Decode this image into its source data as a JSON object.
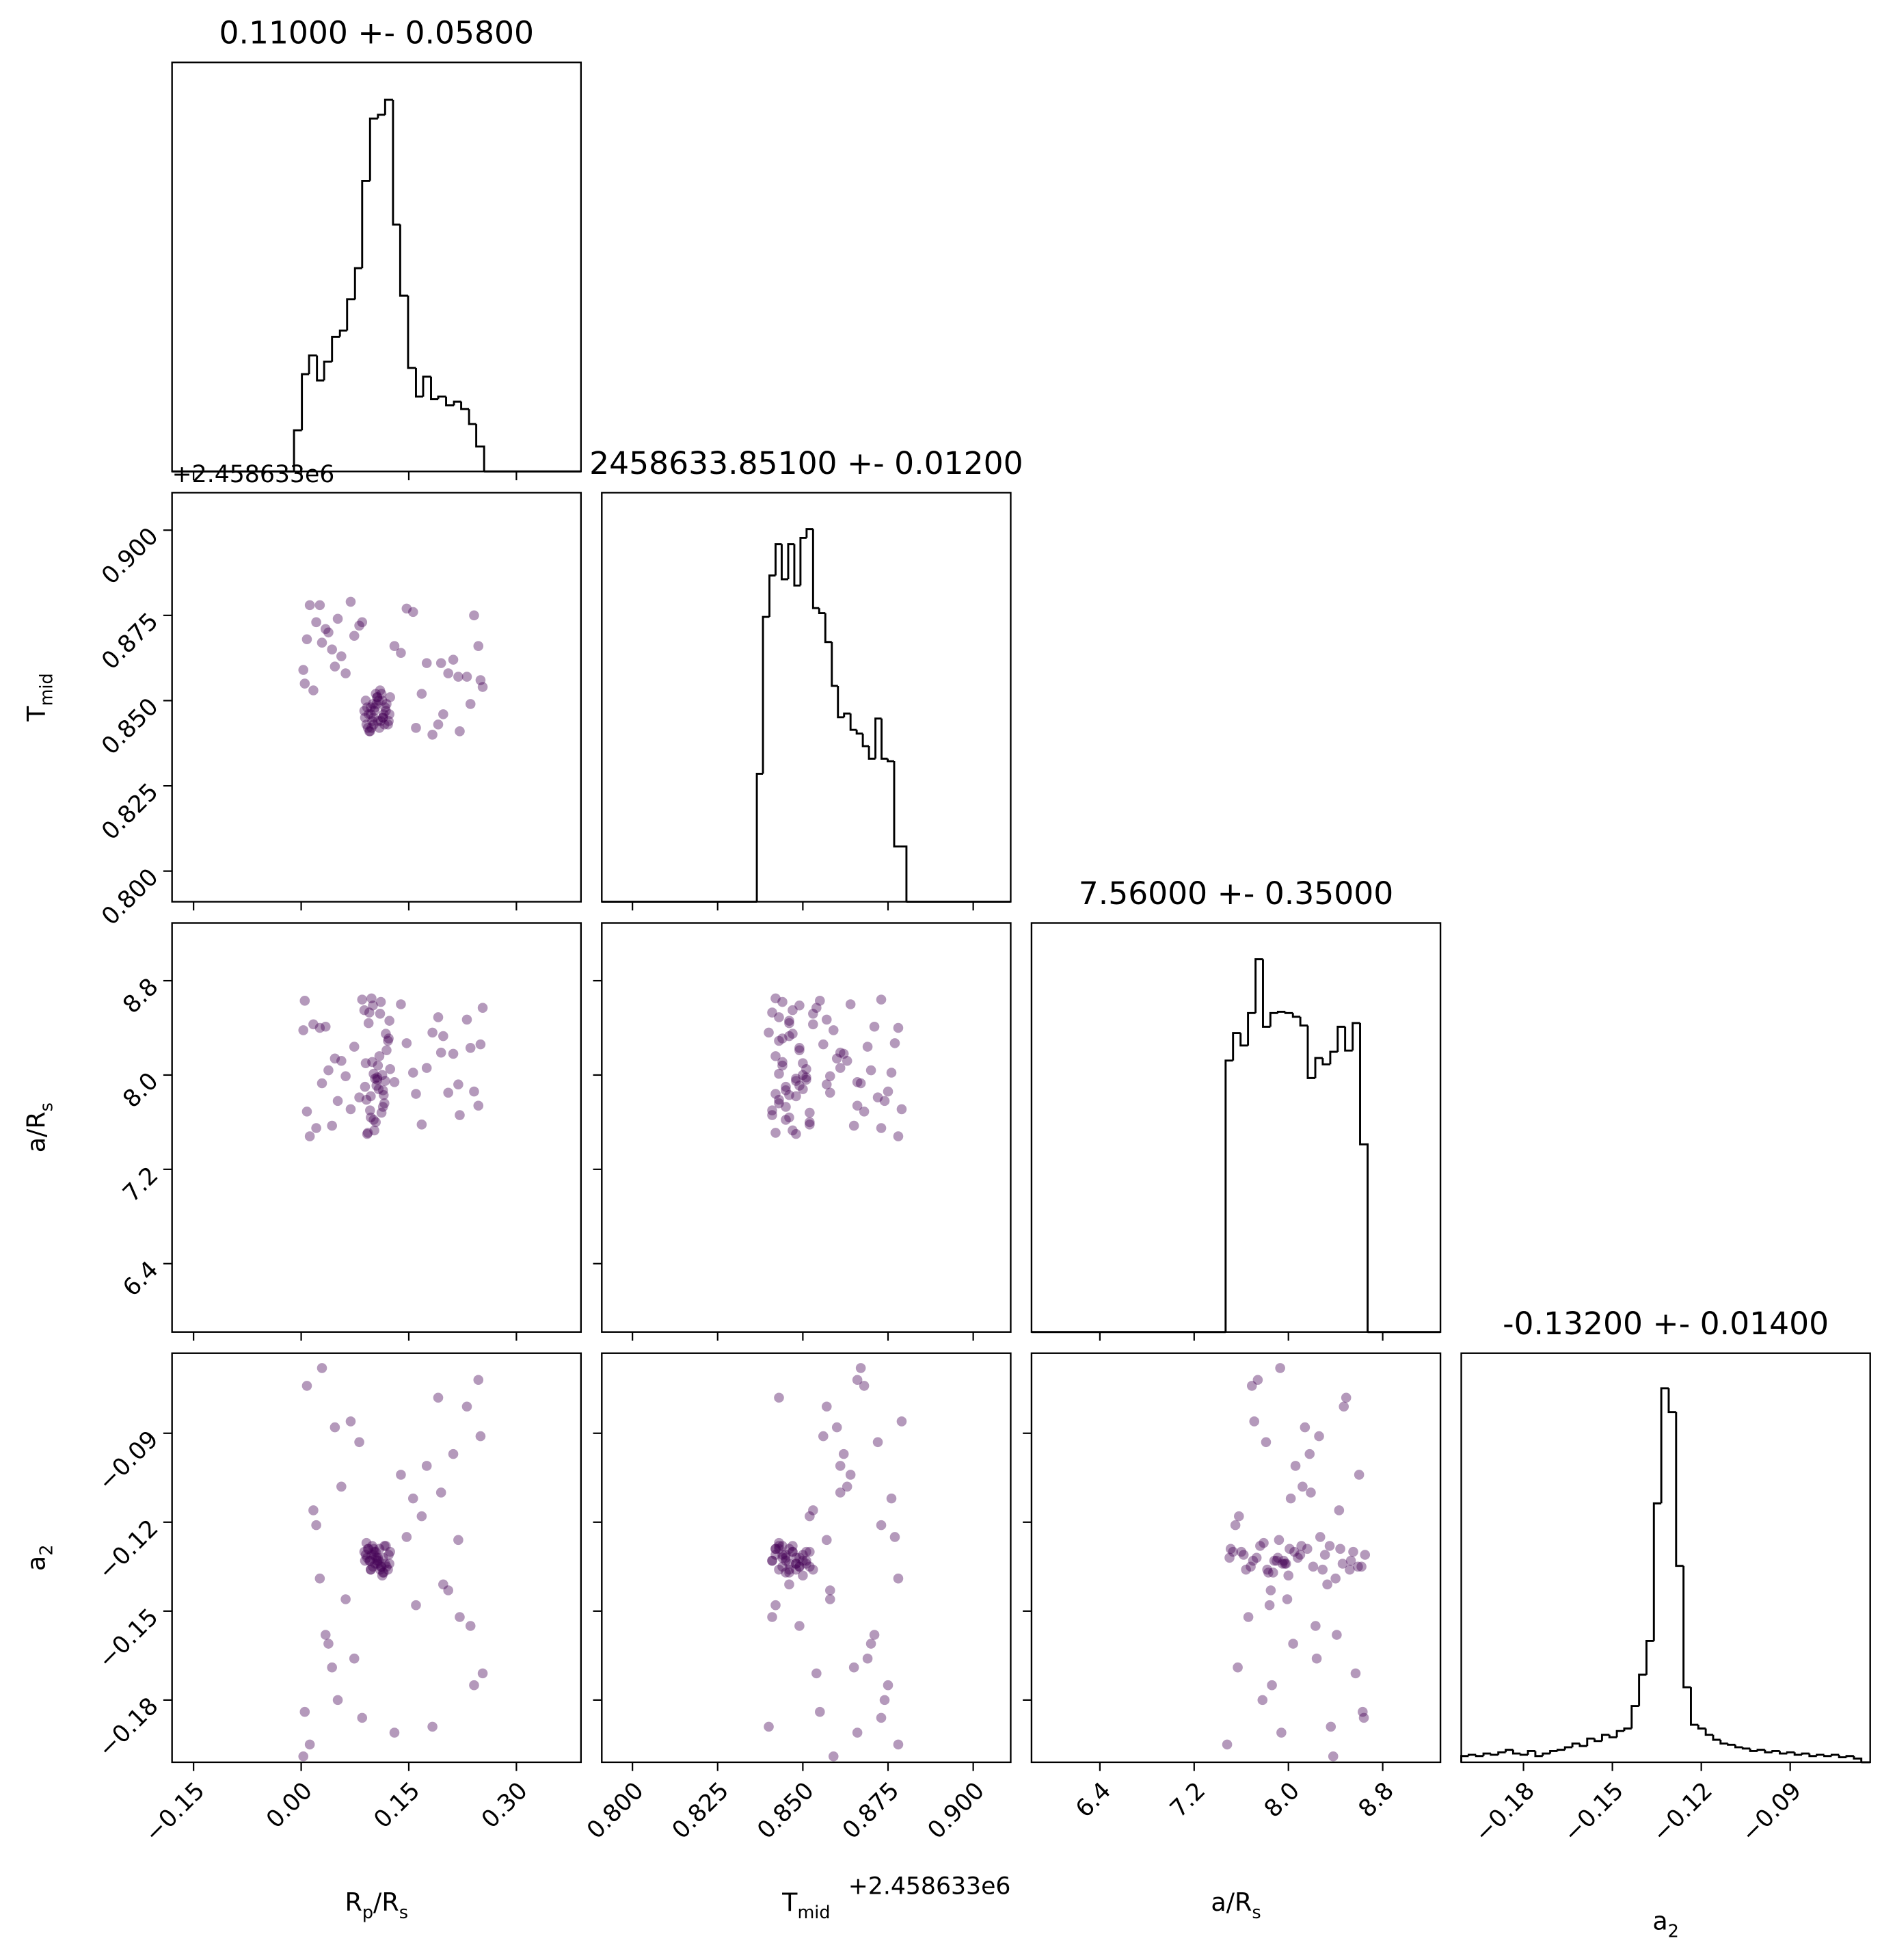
{
  "chart_data": {
    "type": "corner",
    "color": "#440154",
    "hist_color": "#000000",
    "parameters": [
      {
        "title": "0.11000 +- 0.05800",
        "label": [
          "R",
          "p",
          "/R",
          "s"
        ],
        "lim": [
          -0.18,
          0.39
        ],
        "ticks": [
          {
            "value": -0.15,
            "label": "−0.15"
          },
          {
            "value": 0,
            "label": "0.00"
          },
          {
            "value": 0.15,
            "label": "0.15"
          },
          {
            "value": 0.3,
            "label": "0.30"
          }
        ],
        "bins": [
          -0.01,
          0.001,
          0.011,
          0.022,
          0.032,
          0.043,
          0.054,
          0.064,
          0.075,
          0.085,
          0.096,
          0.107,
          0.117,
          0.128,
          0.138,
          0.149,
          0.16,
          0.17,
          0.181,
          0.191,
          0.202,
          0.213,
          0.223,
          0.234,
          0.244,
          0.255
        ],
        "counts": [
          33,
          78,
          93,
          73,
          88,
          108,
          113,
          138,
          163,
          233,
          283,
          286,
          298,
          198,
          141,
          83,
          60,
          76,
          58,
          60,
          53,
          56,
          50,
          38,
          20
        ],
        "hist_ylim": [
          0,
          328
        ],
        "samples": [
          0.101,
          0.034,
          0.117,
          0.212,
          0.093,
          0.005,
          0.108,
          0.156,
          0.121,
          0.247,
          0.088,
          0.062,
          0.112,
          0.183,
          0.099,
          0.021,
          0.105,
          0.231,
          0.115,
          0.074,
          0.096,
          0.139,
          0.124,
          0.012,
          0.103,
          0.198,
          0.091,
          0.047,
          0.11,
          0.241,
          0.107,
          0.168,
          0.094,
          0.029,
          0.119,
          0.221,
          0.098,
          0.081,
          0.113,
          0.003,
          0.102,
          0.147,
          0.089,
          0.253,
          0.116,
          0.056,
          0.106,
          0.191,
          0.097,
          0.038,
          0.122,
          0.205,
          0.1,
          0.069,
          0.109,
          0.13,
          0.092,
          0.017,
          0.114,
          0.236,
          0.104,
          0.175,
          0.095,
          0.051,
          0.118,
          0.219,
          0.111,
          0.008,
          0.09,
          0.16,
          0.123,
          0.043,
          0.101,
          0.25,
          0.097,
          0.085,
          0.114,
          0.195,
          0.106,
          0.026
        ]
      },
      {
        "title": "2458633.85100 +- 0.01200",
        "label": [
          "T",
          "mid"
        ],
        "offset_text": "+2.458633e6",
        "lim": [
          0.791,
          0.911
        ],
        "ticks": [
          {
            "value": 0.8,
            "label": "0.800"
          },
          {
            "value": 0.825,
            "label": "0.825"
          },
          {
            "value": 0.85,
            "label": "0.850"
          },
          {
            "value": 0.875,
            "label": "0.875"
          },
          {
            "value": 0.9,
            "label": "0.900"
          }
        ],
        "bins": [
          0.8365,
          0.8383,
          0.8402,
          0.842,
          0.8438,
          0.8457,
          0.8475,
          0.8493,
          0.8511,
          0.853,
          0.8548,
          0.8566,
          0.8585,
          0.8603,
          0.8621,
          0.864,
          0.8658,
          0.8676,
          0.8694,
          0.8713,
          0.8731,
          0.8749,
          0.8768,
          0.8786,
          0.8804
        ],
        "counts": [
          102,
          227,
          260,
          285,
          257,
          285,
          252,
          290,
          297,
          234,
          230,
          207,
          172,
          147,
          150,
          137,
          134,
          124,
          114,
          146,
          114,
          112,
          44,
          44
        ],
        "hist_ylim": [
          0,
          326
        ],
        "samples": [
          0.845,
          0.871,
          0.848,
          0.862,
          0.842,
          0.855,
          0.85,
          0.876,
          0.843,
          0.866,
          0.847,
          0.858,
          0.852,
          0.84,
          0.844,
          0.873,
          0.849,
          0.857,
          0.846,
          0.869,
          0.841,
          0.864,
          0.851,
          0.878,
          0.848,
          0.846,
          0.843,
          0.86,
          0.853,
          0.875,
          0.844,
          0.852,
          0.846,
          0.867,
          0.849,
          0.841,
          0.842,
          0.872,
          0.85,
          0.859,
          0.847,
          0.877,
          0.845,
          0.854,
          0.843,
          0.863,
          0.851,
          0.843,
          0.846,
          0.87,
          0.844,
          0.858,
          0.849,
          0.879,
          0.842,
          0.866,
          0.848,
          0.853,
          0.845,
          0.849,
          0.852,
          0.861,
          0.841,
          0.874,
          0.847,
          0.857,
          0.844,
          0.868,
          0.85,
          0.842,
          0.846,
          0.865,
          0.843,
          0.856,
          0.848,
          0.873,
          0.845,
          0.861,
          0.851,
          0.878
        ]
      },
      {
        "title": "7.56000 +- 0.35000",
        "label": [
          "a/R",
          "s"
        ],
        "lim": [
          5.82,
          9.29
        ],
        "ticks": [
          6.4,
          7.2,
          {
            "value": 8,
            "label": "8.0"
          },
          8.8
        ],
        "bins": [
          7.467,
          7.53,
          7.594,
          7.657,
          7.721,
          7.784,
          7.847,
          7.911,
          7.974,
          8.038,
          8.101,
          8.164,
          8.228,
          8.291,
          8.355,
          8.418,
          8.481,
          8.545,
          8.608,
          8.672
        ],
        "counts": [
          217,
          239,
          229,
          255,
          298,
          244,
          255,
          256,
          255,
          252,
          245,
          203,
          219,
          214,
          224,
          244,
          225,
          247,
          150
        ],
        "hist_ylim": [
          0,
          327
        ],
        "samples": [
          7.62,
          8.41,
          7.95,
          8.18,
          7.51,
          8.63,
          7.88,
          8.02,
          8.29,
          7.74,
          8.55,
          7.99,
          7.68,
          8.36,
          8.11,
          7.55,
          7.91,
          8.47,
          7.83,
          8.24,
          7.7,
          8.6,
          8.05,
          7.48,
          7.97,
          8.33,
          7.79,
          8.14,
          8.52,
          7.86,
          8.08,
          7.58,
          8.44,
          7.93,
          8.21,
          7.66,
          8.65,
          7.81,
          8.0,
          8.38,
          7.53,
          8.27,
          7.9,
          8.57,
          7.76,
          8.12,
          7.98,
          8.49,
          7.64,
          8.04,
          8.31,
          7.85,
          8.59,
          7.71,
          8.16,
          7.94,
          7.5,
          8.43,
          7.87,
          8.23,
          7.6,
          8.06,
          8.53,
          7.78,
          8.35,
          7.92,
          8.62,
          7.69,
          8.1,
          7.84,
          8.46,
          7.57,
          8.01,
          8.26,
          7.82,
          8.64,
          7.73,
          8.19,
          7.96,
          8.4
        ]
      },
      {
        "title": "-0.13200 +- 0.01400",
        "label": [
          "a",
          "2"
        ],
        "lim": [
          -0.201,
          -0.063
        ],
        "ticks": [
          {
            "value": -0.18,
            "label": "−0.18"
          },
          {
            "value": -0.15,
            "label": "−0.15"
          },
          {
            "value": -0.12,
            "label": "−0.12"
          },
          {
            "value": -0.09,
            "label": "−0.09"
          }
        ],
        "bins": [
          -0.201,
          -0.1985,
          -0.196,
          -0.1935,
          -0.191,
          -0.1885,
          -0.186,
          -0.1835,
          -0.181,
          -0.1785,
          -0.176,
          -0.1735,
          -0.171,
          -0.1685,
          -0.166,
          -0.1635,
          -0.161,
          -0.1585,
          -0.156,
          -0.1535,
          -0.151,
          -0.1485,
          -0.146,
          -0.1435,
          -0.141,
          -0.1385,
          -0.136,
          -0.1335,
          -0.131,
          -0.1285,
          -0.126,
          -0.1235,
          -0.121,
          -0.1185,
          -0.116,
          -0.1135,
          -0.111,
          -0.1085,
          -0.106,
          -0.1035,
          -0.101,
          -0.0985,
          -0.096,
          -0.0935,
          -0.091,
          -0.0885,
          -0.086,
          -0.0835,
          -0.081,
          -0.0785,
          -0.076,
          -0.0735,
          -0.071,
          -0.0685,
          -0.066
        ],
        "counts": [
          5,
          6,
          5,
          7,
          6,
          8,
          10,
          7,
          6,
          9,
          5,
          7,
          9,
          10,
          12,
          15,
          13,
          19,
          17,
          22,
          20,
          25,
          27,
          45,
          70,
          97,
          207,
          299,
          280,
          157,
          60,
          30,
          27,
          22,
          18,
          15,
          14,
          12,
          11,
          9,
          10,
          8,
          9,
          7,
          8,
          6,
          7,
          5,
          6,
          5,
          6,
          4,
          5,
          3
        ],
        "hist_ylim": [
          0,
          327
        ],
        "samples": [
          -0.131,
          -0.158,
          -0.134,
          -0.097,
          -0.129,
          -0.184,
          -0.133,
          -0.112,
          -0.136,
          -0.072,
          -0.13,
          -0.146,
          -0.135,
          -0.189,
          -0.128,
          -0.121,
          -0.132,
          -0.081,
          -0.137,
          -0.166,
          -0.133,
          -0.104,
          -0.13,
          -0.195,
          -0.134,
          -0.141,
          -0.127,
          -0.088,
          -0.136,
          -0.175,
          -0.132,
          -0.118,
          -0.129,
          -0.068,
          -0.135,
          -0.152,
          -0.131,
          -0.093,
          -0.138,
          -0.199,
          -0.13,
          -0.125,
          -0.133,
          -0.171,
          -0.128,
          -0.108,
          -0.134,
          -0.078,
          -0.136,
          -0.161,
          -0.131,
          -0.143,
          -0.135,
          -0.086,
          -0.129,
          -0.191,
          -0.132,
          -0.116,
          -0.137,
          -0.155,
          -0.13,
          -0.101,
          -0.133,
          -0.18,
          -0.128,
          -0.126,
          -0.135,
          -0.074,
          -0.131,
          -0.148,
          -0.134,
          -0.169,
          -0.129,
          -0.091,
          -0.136,
          -0.186,
          -0.132,
          -0.11,
          -0.133,
          -0.139
        ]
      }
    ]
  }
}
